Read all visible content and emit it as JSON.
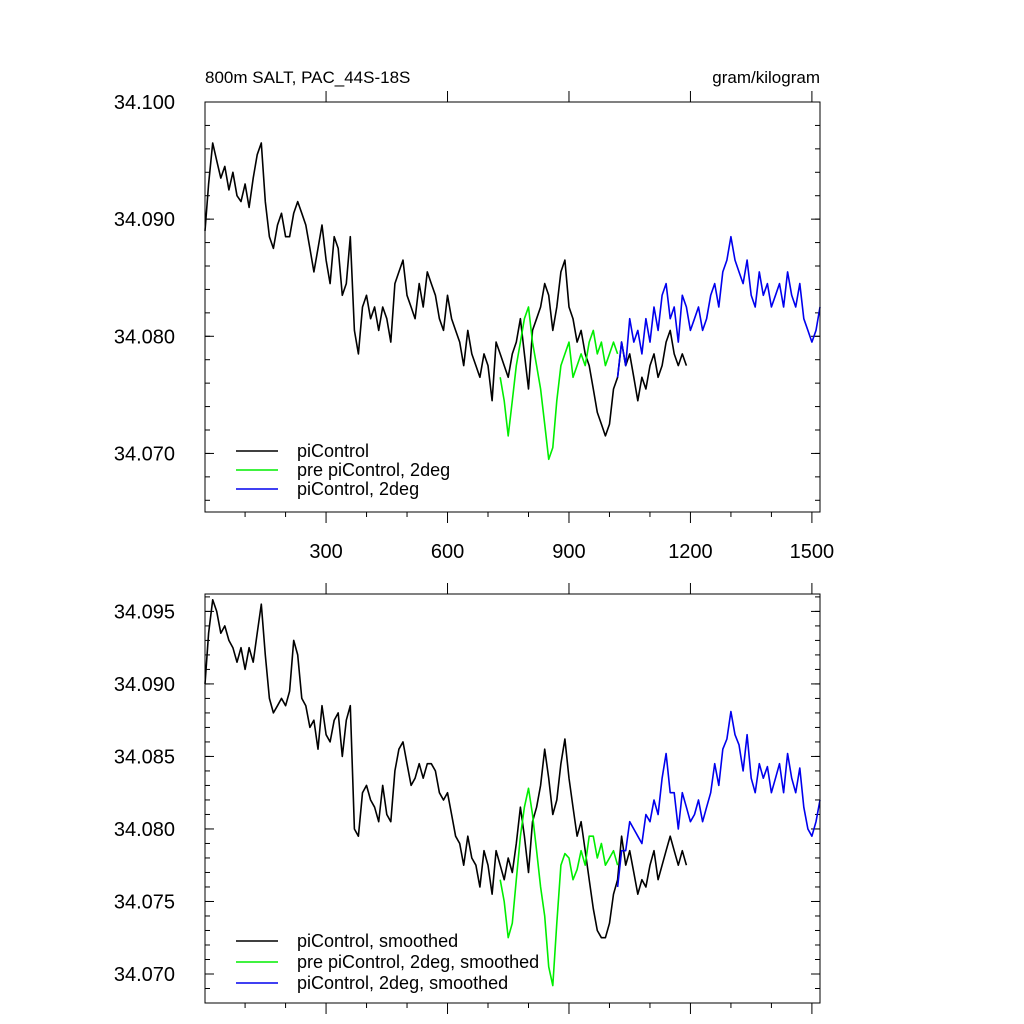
{
  "colors": {
    "picontrol": "#000000",
    "pre_picontrol_2deg": "#00ee00",
    "picontrol_2deg": "#0000ee"
  },
  "chart_data": [
    {
      "type": "line",
      "title": "800m SALT, PAC_44S-18S",
      "units": "gram/kilogram",
      "xlim": [
        1,
        1520
      ],
      "ylim": [
        34.065,
        34.1
      ],
      "xticks": [
        300,
        600,
        900,
        1200,
        1500
      ],
      "xtick_labels": [
        "300",
        "600",
        "900",
        "1200",
        "1500"
      ],
      "yticks": [
        34.07,
        34.08,
        34.09,
        34.1
      ],
      "ytick_labels": [
        "34.070",
        "34.080",
        "34.090",
        "34.100"
      ],
      "legend": "bottom-left",
      "series": [
        {
          "name": "piControl",
          "color": "#000000",
          "x": [
            1,
            10,
            20,
            30,
            40,
            50,
            60,
            70,
            80,
            90,
            100,
            110,
            120,
            130,
            140,
            150,
            160,
            170,
            180,
            190,
            200,
            210,
            220,
            230,
            240,
            250,
            260,
            270,
            280,
            290,
            300,
            310,
            320,
            330,
            340,
            350,
            360,
            370,
            380,
            390,
            400,
            410,
            420,
            430,
            440,
            450,
            460,
            470,
            480,
            490,
            500,
            510,
            520,
            530,
            540,
            550,
            560,
            570,
            580,
            590,
            600,
            610,
            620,
            630,
            640,
            650,
            660,
            670,
            680,
            690,
            700,
            710,
            720,
            730,
            740,
            750,
            760,
            770,
            780,
            790,
            800,
            810,
            820,
            830,
            840,
            850,
            860,
            870,
            880,
            890,
            900,
            910,
            920,
            930,
            940,
            950,
            960,
            970,
            980,
            990,
            1000,
            1010,
            1020,
            1030,
            1040,
            1050,
            1060,
            1070,
            1080,
            1090,
            1100,
            1110,
            1120,
            1130,
            1140,
            1150,
            1160,
            1170,
            1180,
            1190
          ],
          "y": [
            34.089,
            34.093,
            34.0965,
            34.095,
            34.0935,
            34.0945,
            34.0925,
            34.094,
            34.092,
            34.0915,
            34.093,
            34.091,
            34.0935,
            34.0955,
            34.0965,
            34.0915,
            34.0885,
            34.0875,
            34.0895,
            34.0905,
            34.0885,
            34.0885,
            34.0905,
            34.0915,
            34.0905,
            34.0895,
            34.0875,
            34.0855,
            34.0875,
            34.0895,
            34.0865,
            34.0845,
            34.0885,
            34.0875,
            34.0835,
            34.0845,
            34.0885,
            34.0805,
            34.0785,
            34.0825,
            34.0835,
            34.0815,
            34.0825,
            34.0805,
            34.0825,
            34.0815,
            34.0795,
            34.0845,
            34.0855,
            34.0865,
            34.0835,
            34.0825,
            34.0815,
            34.0845,
            34.0825,
            34.0855,
            34.0845,
            34.0835,
            34.0815,
            34.0805,
            34.0835,
            34.0815,
            34.0805,
            34.0795,
            34.0775,
            34.0805,
            34.0785,
            34.0775,
            34.0765,
            34.0785,
            34.0775,
            34.0745,
            34.0795,
            34.0785,
            34.0775,
            34.0765,
            34.0785,
            34.0795,
            34.0815,
            34.0785,
            34.0755,
            34.0805,
            34.0815,
            34.0825,
            34.0845,
            34.0835,
            34.0805,
            34.0825,
            34.0855,
            34.0865,
            34.0825,
            34.0815,
            34.0795,
            34.0805,
            34.0785,
            34.0775,
            34.0755,
            34.0735,
            34.0725,
            34.0715,
            34.0725,
            34.0755,
            34.0765,
            34.0795,
            34.0775,
            34.0785,
            34.0765,
            34.0745,
            34.0765,
            34.0755,
            34.0775,
            34.0785,
            34.0765,
            34.0775,
            34.0795,
            34.0805,
            34.0785,
            34.0775,
            34.0785,
            34.0775
          ]
        },
        {
          "name": "pre piControl, 2deg",
          "color": "#00ee00",
          "x": [
            730,
            740,
            750,
            760,
            770,
            780,
            790,
            800,
            810,
            820,
            830,
            840,
            850,
            860,
            870,
            880,
            890,
            900,
            910,
            920,
            930,
            940,
            950,
            960,
            970,
            980,
            990,
            1000,
            1010,
            1020
          ],
          "y": [
            34.0765,
            34.0745,
            34.0715,
            34.0745,
            34.0775,
            34.0795,
            34.0815,
            34.0825,
            34.0795,
            34.0775,
            34.0755,
            34.0725,
            34.0695,
            34.0705,
            34.0745,
            34.0775,
            34.0785,
            34.0795,
            34.0765,
            34.0775,
            34.0785,
            34.0775,
            34.0795,
            34.0805,
            34.0785,
            34.0795,
            34.0775,
            34.0785,
            34.0795,
            34.0785
          ]
        },
        {
          "name": "piControl, 2deg",
          "color": "#0000ee",
          "x": [
            1020,
            1030,
            1040,
            1050,
            1060,
            1070,
            1080,
            1090,
            1100,
            1110,
            1120,
            1130,
            1140,
            1150,
            1160,
            1170,
            1180,
            1190,
            1200,
            1210,
            1220,
            1230,
            1240,
            1250,
            1260,
            1270,
            1280,
            1290,
            1300,
            1310,
            1320,
            1330,
            1340,
            1350,
            1360,
            1370,
            1380,
            1390,
            1400,
            1410,
            1420,
            1430,
            1440,
            1450,
            1460,
            1470,
            1480,
            1490,
            1500,
            1510,
            1520
          ],
          "y": [
            34.0765,
            34.0795,
            34.0775,
            34.0815,
            34.0795,
            34.0805,
            34.0785,
            34.0815,
            34.0795,
            34.0825,
            34.0805,
            34.0835,
            34.0845,
            34.0815,
            34.0825,
            34.0795,
            34.0835,
            34.0825,
            34.0805,
            34.0815,
            34.0825,
            34.0805,
            34.0815,
            34.0835,
            34.0845,
            34.0825,
            34.0855,
            34.0865,
            34.0885,
            34.0865,
            34.0855,
            34.0845,
            34.0865,
            34.0835,
            34.0825,
            34.0855,
            34.0835,
            34.0845,
            34.0825,
            34.0835,
            34.0845,
            34.0825,
            34.0855,
            34.0835,
            34.0825,
            34.0845,
            34.0815,
            34.0805,
            34.0795,
            34.0805,
            34.0825
          ]
        }
      ]
    },
    {
      "type": "line",
      "xlim": [
        1,
        1520
      ],
      "ylim": [
        34.068,
        34.0962
      ],
      "xticks": [
        300,
        600,
        900,
        1200,
        1500
      ],
      "yticks": [
        34.07,
        34.075,
        34.08,
        34.085,
        34.09,
        34.095
      ],
      "ytick_labels": [
        "34.070",
        "34.075",
        "34.080",
        "34.085",
        "34.090",
        "34.095"
      ],
      "legend": "bottom-left",
      "series": [
        {
          "name": "piControl, smoothed",
          "color": "#000000",
          "x": [
            1,
            10,
            20,
            30,
            40,
            50,
            60,
            70,
            80,
            90,
            100,
            110,
            120,
            130,
            140,
            150,
            160,
            170,
            180,
            190,
            200,
            210,
            220,
            230,
            240,
            250,
            260,
            270,
            280,
            290,
            300,
            310,
            320,
            330,
            340,
            350,
            360,
            370,
            380,
            390,
            400,
            410,
            420,
            430,
            440,
            450,
            460,
            470,
            480,
            490,
            500,
            510,
            520,
            530,
            540,
            550,
            560,
            570,
            580,
            590,
            600,
            610,
            620,
            630,
            640,
            650,
            660,
            670,
            680,
            690,
            700,
            710,
            720,
            730,
            740,
            750,
            760,
            770,
            780,
            790,
            800,
            810,
            820,
            830,
            840,
            850,
            860,
            870,
            880,
            890,
            900,
            910,
            920,
            930,
            940,
            950,
            960,
            970,
            980,
            990,
            1000,
            1010,
            1020,
            1030,
            1040,
            1050,
            1060,
            1070,
            1080,
            1090,
            1100,
            1110,
            1120,
            1130,
            1140,
            1150,
            1160,
            1170,
            1180,
            1190
          ],
          "y": [
            34.09,
            34.0935,
            34.0958,
            34.095,
            34.0935,
            34.094,
            34.093,
            34.0925,
            34.0915,
            34.0925,
            34.091,
            34.0925,
            34.0915,
            34.0935,
            34.0955,
            34.092,
            34.089,
            34.088,
            34.0885,
            34.089,
            34.0885,
            34.0895,
            34.093,
            34.092,
            34.089,
            34.0885,
            34.087,
            34.0875,
            34.0855,
            34.0885,
            34.0865,
            34.086,
            34.0875,
            34.088,
            34.085,
            34.0875,
            34.0885,
            34.08,
            34.0795,
            34.0825,
            34.083,
            34.082,
            34.0815,
            34.0805,
            34.083,
            34.081,
            34.0805,
            34.084,
            34.0855,
            34.086,
            34.0845,
            34.083,
            34.0835,
            34.0845,
            34.0835,
            34.0845,
            34.0845,
            34.084,
            34.0825,
            34.082,
            34.0825,
            34.081,
            34.0795,
            34.079,
            34.0775,
            34.0795,
            34.078,
            34.0775,
            34.076,
            34.0785,
            34.0775,
            34.0755,
            34.0785,
            34.0775,
            34.0765,
            34.078,
            34.077,
            34.079,
            34.0815,
            34.0795,
            34.077,
            34.0805,
            34.0815,
            34.083,
            34.0855,
            34.0835,
            34.081,
            34.082,
            34.0845,
            34.0862,
            34.0835,
            34.0815,
            34.0795,
            34.0805,
            34.0785,
            34.0765,
            34.0745,
            34.073,
            34.0725,
            34.0725,
            34.0735,
            34.0755,
            34.0765,
            34.0795,
            34.0775,
            34.0785,
            34.077,
            34.0755,
            34.0765,
            34.076,
            34.0775,
            34.0785,
            34.0765,
            34.0775,
            34.0785,
            34.0795,
            34.0785,
            34.0775,
            34.0785,
            34.0775
          ]
        },
        {
          "name": "pre piControl, 2deg, smoothed",
          "color": "#00ee00",
          "x": [
            730,
            740,
            750,
            760,
            770,
            780,
            790,
            800,
            810,
            820,
            830,
            840,
            850,
            860,
            870,
            880,
            890,
            900,
            910,
            920,
            930,
            940,
            950,
            960,
            970,
            980,
            990,
            1000,
            1010,
            1020
          ],
          "y": [
            34.0765,
            34.075,
            34.0725,
            34.0735,
            34.0765,
            34.0795,
            34.0815,
            34.0828,
            34.081,
            34.0785,
            34.076,
            34.074,
            34.0705,
            34.0692,
            34.0735,
            34.0775,
            34.0783,
            34.078,
            34.0765,
            34.0772,
            34.0785,
            34.0775,
            34.0795,
            34.0795,
            34.078,
            34.079,
            34.0775,
            34.078,
            34.0785,
            34.0775
          ]
        },
        {
          "name": "piControl, 2deg, smoothed",
          "color": "#0000ee",
          "x": [
            1020,
            1030,
            1040,
            1050,
            1060,
            1070,
            1080,
            1090,
            1100,
            1110,
            1120,
            1130,
            1140,
            1150,
            1160,
            1170,
            1180,
            1190,
            1200,
            1210,
            1220,
            1230,
            1240,
            1250,
            1260,
            1270,
            1280,
            1290,
            1300,
            1310,
            1320,
            1330,
            1340,
            1350,
            1360,
            1370,
            1380,
            1390,
            1400,
            1410,
            1420,
            1430,
            1440,
            1450,
            1460,
            1470,
            1480,
            1490,
            1500,
            1510,
            1520
          ],
          "y": [
            34.076,
            34.0785,
            34.0785,
            34.0805,
            34.08,
            34.0795,
            34.079,
            34.081,
            34.0805,
            34.082,
            34.081,
            34.0835,
            34.0852,
            34.0825,
            34.0825,
            34.08,
            34.0825,
            34.0815,
            34.0805,
            34.081,
            34.082,
            34.0805,
            34.0815,
            34.0825,
            34.0845,
            34.083,
            34.0855,
            34.0862,
            34.0881,
            34.0865,
            34.0858,
            34.084,
            34.0865,
            34.0835,
            34.0825,
            34.0845,
            34.0835,
            34.0843,
            34.0825,
            34.0835,
            34.0845,
            34.0825,
            34.0852,
            34.0835,
            34.0825,
            34.0842,
            34.0815,
            34.08,
            34.0795,
            34.0805,
            34.082
          ]
        }
      ]
    }
  ]
}
